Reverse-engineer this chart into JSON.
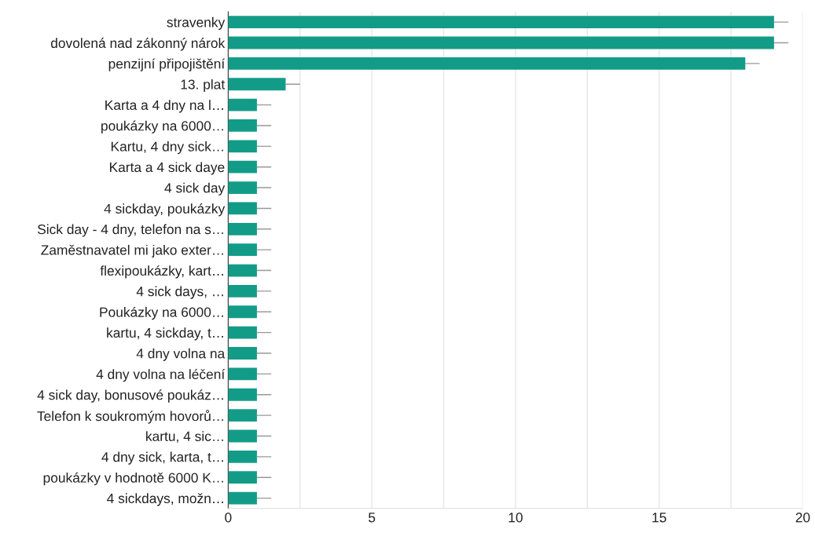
{
  "chart_data": {
    "type": "bar",
    "orientation": "horizontal",
    "color": "#129c88",
    "categories": [
      "stravenky",
      "dovolená nad zákonný nárok",
      "penzijní připojištění",
      "13. plat",
      "Karta a 4 dny na l…",
      "poukázky na 6000…",
      "Kartu, 4 dny sick…",
      "Karta a 4 sick daye",
      "4 sick day",
      "4 sickday, poukázky",
      "Sick day - 4 dny, telefon na s…",
      "Zaměstnavatel mi jako exter…",
      "flexipoukázky, kart…",
      "4 sick days, …",
      "Poukázky na 6000…",
      "kartu, 4 sickday, t…",
      "4 dny volna na",
      "4 dny volna na léčení",
      "4 sick day, bonusové poukáz…",
      "Telefon k soukromým hovorů…",
      "kartu, 4 sic…",
      "4 dny sick, karta, t…",
      "poukázky v hodnotě 6000 K…",
      "4 sickdays, možn…"
    ],
    "values": [
      19,
      19,
      18,
      2,
      1,
      1,
      1,
      1,
      1,
      1,
      1,
      1,
      1,
      1,
      1,
      1,
      1,
      1,
      1,
      1,
      1,
      1,
      1,
      1
    ],
    "errors": [
      [
        19,
        19.5
      ],
      [
        19,
        19.5
      ],
      [
        18,
        18.5
      ],
      [
        2,
        2.5
      ],
      [
        1,
        1.5
      ],
      [
        1,
        1.5
      ],
      [
        1,
        1.5
      ],
      [
        1,
        1.5
      ],
      [
        1,
        1.5
      ],
      [
        1,
        1.5
      ],
      [
        1,
        1.5
      ],
      [
        1,
        1.5
      ],
      [
        1,
        1.5
      ],
      [
        1,
        1.5
      ],
      [
        1,
        1.5
      ],
      [
        1,
        1.5
      ],
      [
        1,
        1.5
      ],
      [
        1,
        1.5
      ],
      [
        1,
        1.5
      ],
      [
        1,
        1.5
      ],
      [
        1,
        1.5
      ],
      [
        1,
        1.5
      ],
      [
        1,
        1.5
      ],
      [
        1,
        1.5
      ]
    ],
    "xlim": [
      0,
      20
    ],
    "xticks": [
      0,
      {
        "value": 2.5,
        "label": null
      },
      5,
      {
        "value": 7.5,
        "label": null
      },
      10,
      {
        "value": 12.5,
        "label": null
      },
      15,
      {
        "value": 17.5,
        "label": null
      },
      20
    ],
    "grid": "x"
  }
}
